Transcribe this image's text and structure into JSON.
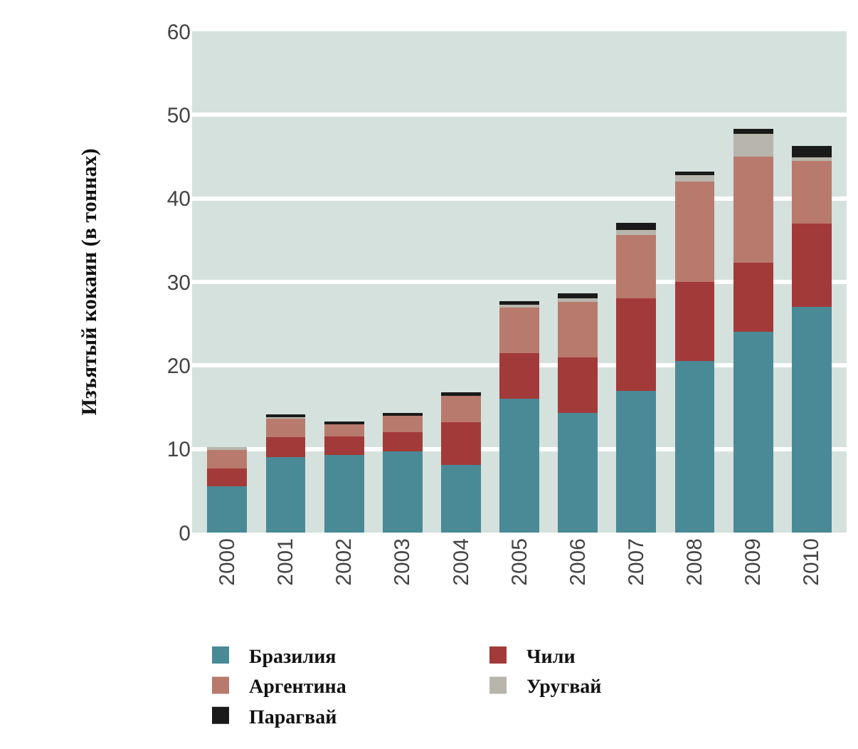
{
  "chart_data": {
    "type": "bar",
    "ylabel": "Изъятый кокаин (в тоннах)",
    "categories": [
      "2000",
      "2001",
      "2002",
      "2003",
      "2004",
      "2005",
      "2006",
      "2007",
      "2008",
      "2009",
      "2010"
    ],
    "stacked": true,
    "ylim": [
      0,
      60
    ],
    "yticks": [
      0,
      10,
      20,
      30,
      40,
      50,
      60
    ],
    "grid": "y",
    "legend": "bottom",
    "series": [
      {
        "name": "Бразилия",
        "color": "#4a8a96",
        "values": [
          5.5,
          9.0,
          9.3,
          9.7,
          8.1,
          16.0,
          14.3,
          17.0,
          20.5,
          24.0,
          27.0
        ]
      },
      {
        "name": "Чили",
        "color": "#a33a3a",
        "values": [
          2.2,
          2.4,
          2.2,
          2.3,
          5.1,
          5.5,
          6.7,
          11.0,
          9.5,
          8.3,
          10.0
        ]
      },
      {
        "name": "Аргентина",
        "color": "#b87a6c",
        "values": [
          2.3,
          2.4,
          1.5,
          2.0,
          3.2,
          5.5,
          6.7,
          7.6,
          12.0,
          12.7,
          7.5
        ]
      },
      {
        "name": "Уругвай",
        "color": "#b8b5ad",
        "values": [
          0.1,
          0.1,
          null,
          null,
          null,
          0.3,
          0.3,
          0.6,
          0.8,
          2.7,
          0.4
        ]
      },
      {
        "name": "Парагвай",
        "color": "#1a1a1a",
        "values": [
          0,
          0.1,
          0.3,
          0.3,
          0.4,
          0.4,
          0.6,
          0.9,
          0.4,
          0.6,
          1.4
        ]
      }
    ]
  }
}
